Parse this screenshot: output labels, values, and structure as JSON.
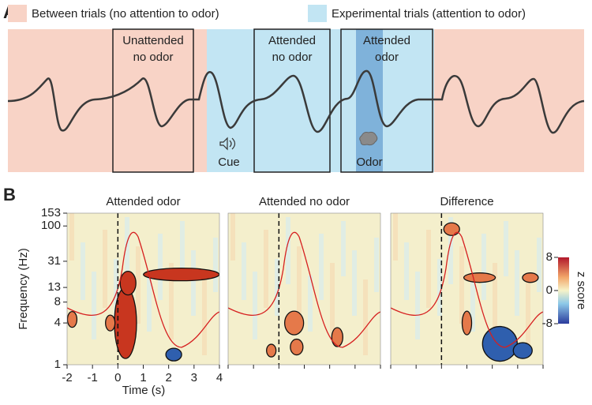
{
  "panel_a": {
    "label": "A",
    "legend": [
      {
        "label": "Between trials (no attention to odor)",
        "color": "#f8d3c6"
      },
      {
        "label": "Experimental trials (attention to odor)",
        "color": "#c2e5f3"
      }
    ],
    "boxes": [
      [
        "Unattended",
        "no odor"
      ],
      [
        "Attended",
        "no odor"
      ],
      [
        "Attended",
        "odor"
      ]
    ],
    "cue": "Cue",
    "odor": "Odor"
  },
  "panel_b": {
    "label": "B",
    "panels": [
      "Attended odor",
      "Attended no odor",
      "Difference"
    ],
    "y_label": "Frequency (Hz)",
    "x_label": "Time (s)",
    "ylim": [
      1,
      153
    ],
    "yticks": [
      1,
      4,
      8,
      13,
      31,
      100,
      153
    ],
    "xlim": [
      -2,
      4
    ],
    "xticks": [
      -2,
      -1,
      0,
      1,
      2,
      3,
      4
    ],
    "colorbar": {
      "label": "z score",
      "lim": [
        -8,
        8
      ],
      "ticks": [
        8,
        0,
        -8
      ]
    }
  }
}
